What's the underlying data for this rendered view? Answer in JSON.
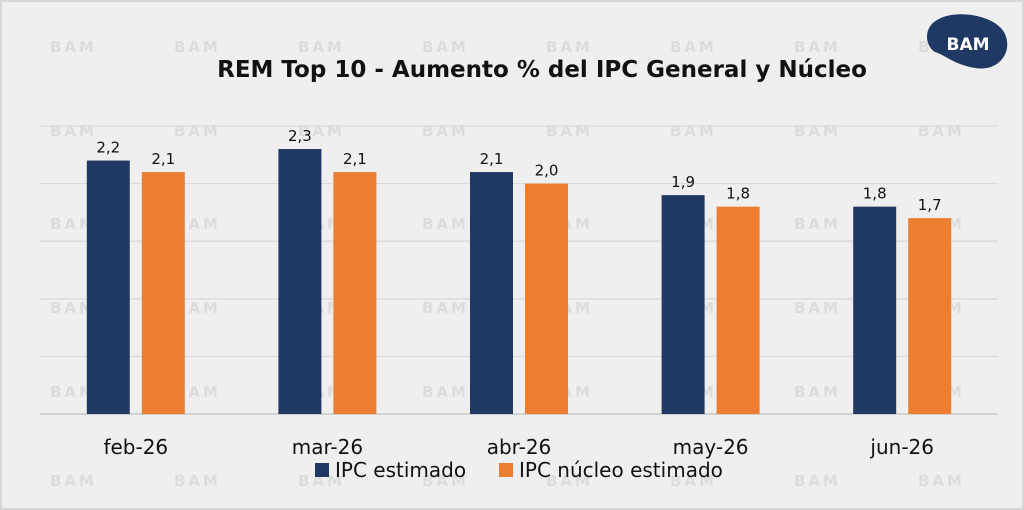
{
  "brand": {
    "watermark_text": "BAM",
    "logo_text": "BAM"
  },
  "chart_data": {
    "type": "bar",
    "title": "REM Top 10 - Aumento % del IPC General y Núcleo",
    "categories": [
      "feb-26",
      "mar-26",
      "abr-26",
      "may-26",
      "jun-26"
    ],
    "series": [
      {
        "name": "IPC estimado",
        "values": [
          2.2,
          2.3,
          2.1,
          1.9,
          1.8
        ],
        "labels": [
          "2,2",
          "2,3",
          "2,1",
          "1,9",
          "1,8"
        ],
        "color": "#203864"
      },
      {
        "name": "IPC núcleo estimado",
        "values": [
          2.1,
          2.1,
          2.0,
          1.8,
          1.7
        ],
        "labels": [
          "2,1",
          "2,1",
          "2,0",
          "1,8",
          "1,7"
        ],
        "color": "#ed7d31"
      }
    ],
    "ylim": [
      0,
      2.5
    ],
    "gridlines": [
      0,
      0.5,
      1.0,
      1.5,
      2.0,
      2.5
    ],
    "grid": true,
    "xlabel": "",
    "ylabel": "",
    "legend_position": "bottom"
  }
}
